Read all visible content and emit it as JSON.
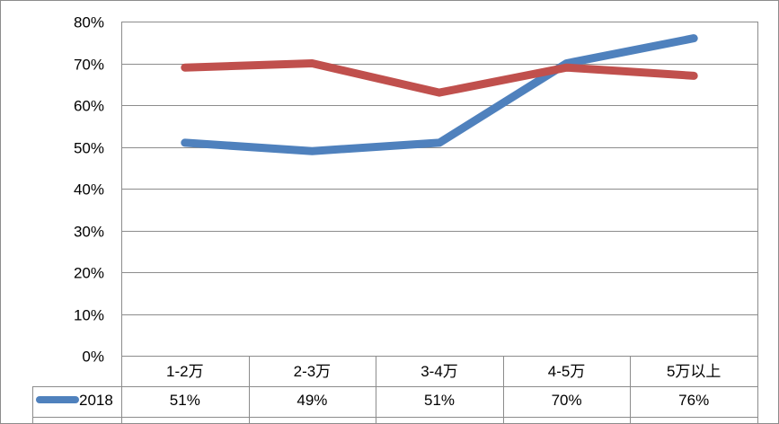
{
  "chart_data": {
    "type": "line",
    "categories": [
      "1-2万",
      "2-3万",
      "3-4万",
      "4-5万",
      "5万以上"
    ],
    "ylim": [
      0,
      0.8
    ],
    "yticks": [
      "0%",
      "10%",
      "20%",
      "30%",
      "40%",
      "50%",
      "60%",
      "70%",
      "80%"
    ],
    "grid": true,
    "legend": "data-table",
    "series": [
      {
        "name": "2018",
        "color": "#4f81bd",
        "values": [
          0.51,
          0.49,
          0.51,
          0.7,
          0.76
        ],
        "labels": [
          "51%",
          "49%",
          "51%",
          "70%",
          "76%"
        ]
      },
      {
        "color": "#c0504d",
        "values": [
          0.69,
          0.7,
          0.63,
          0.69,
          0.67
        ]
      }
    ]
  }
}
